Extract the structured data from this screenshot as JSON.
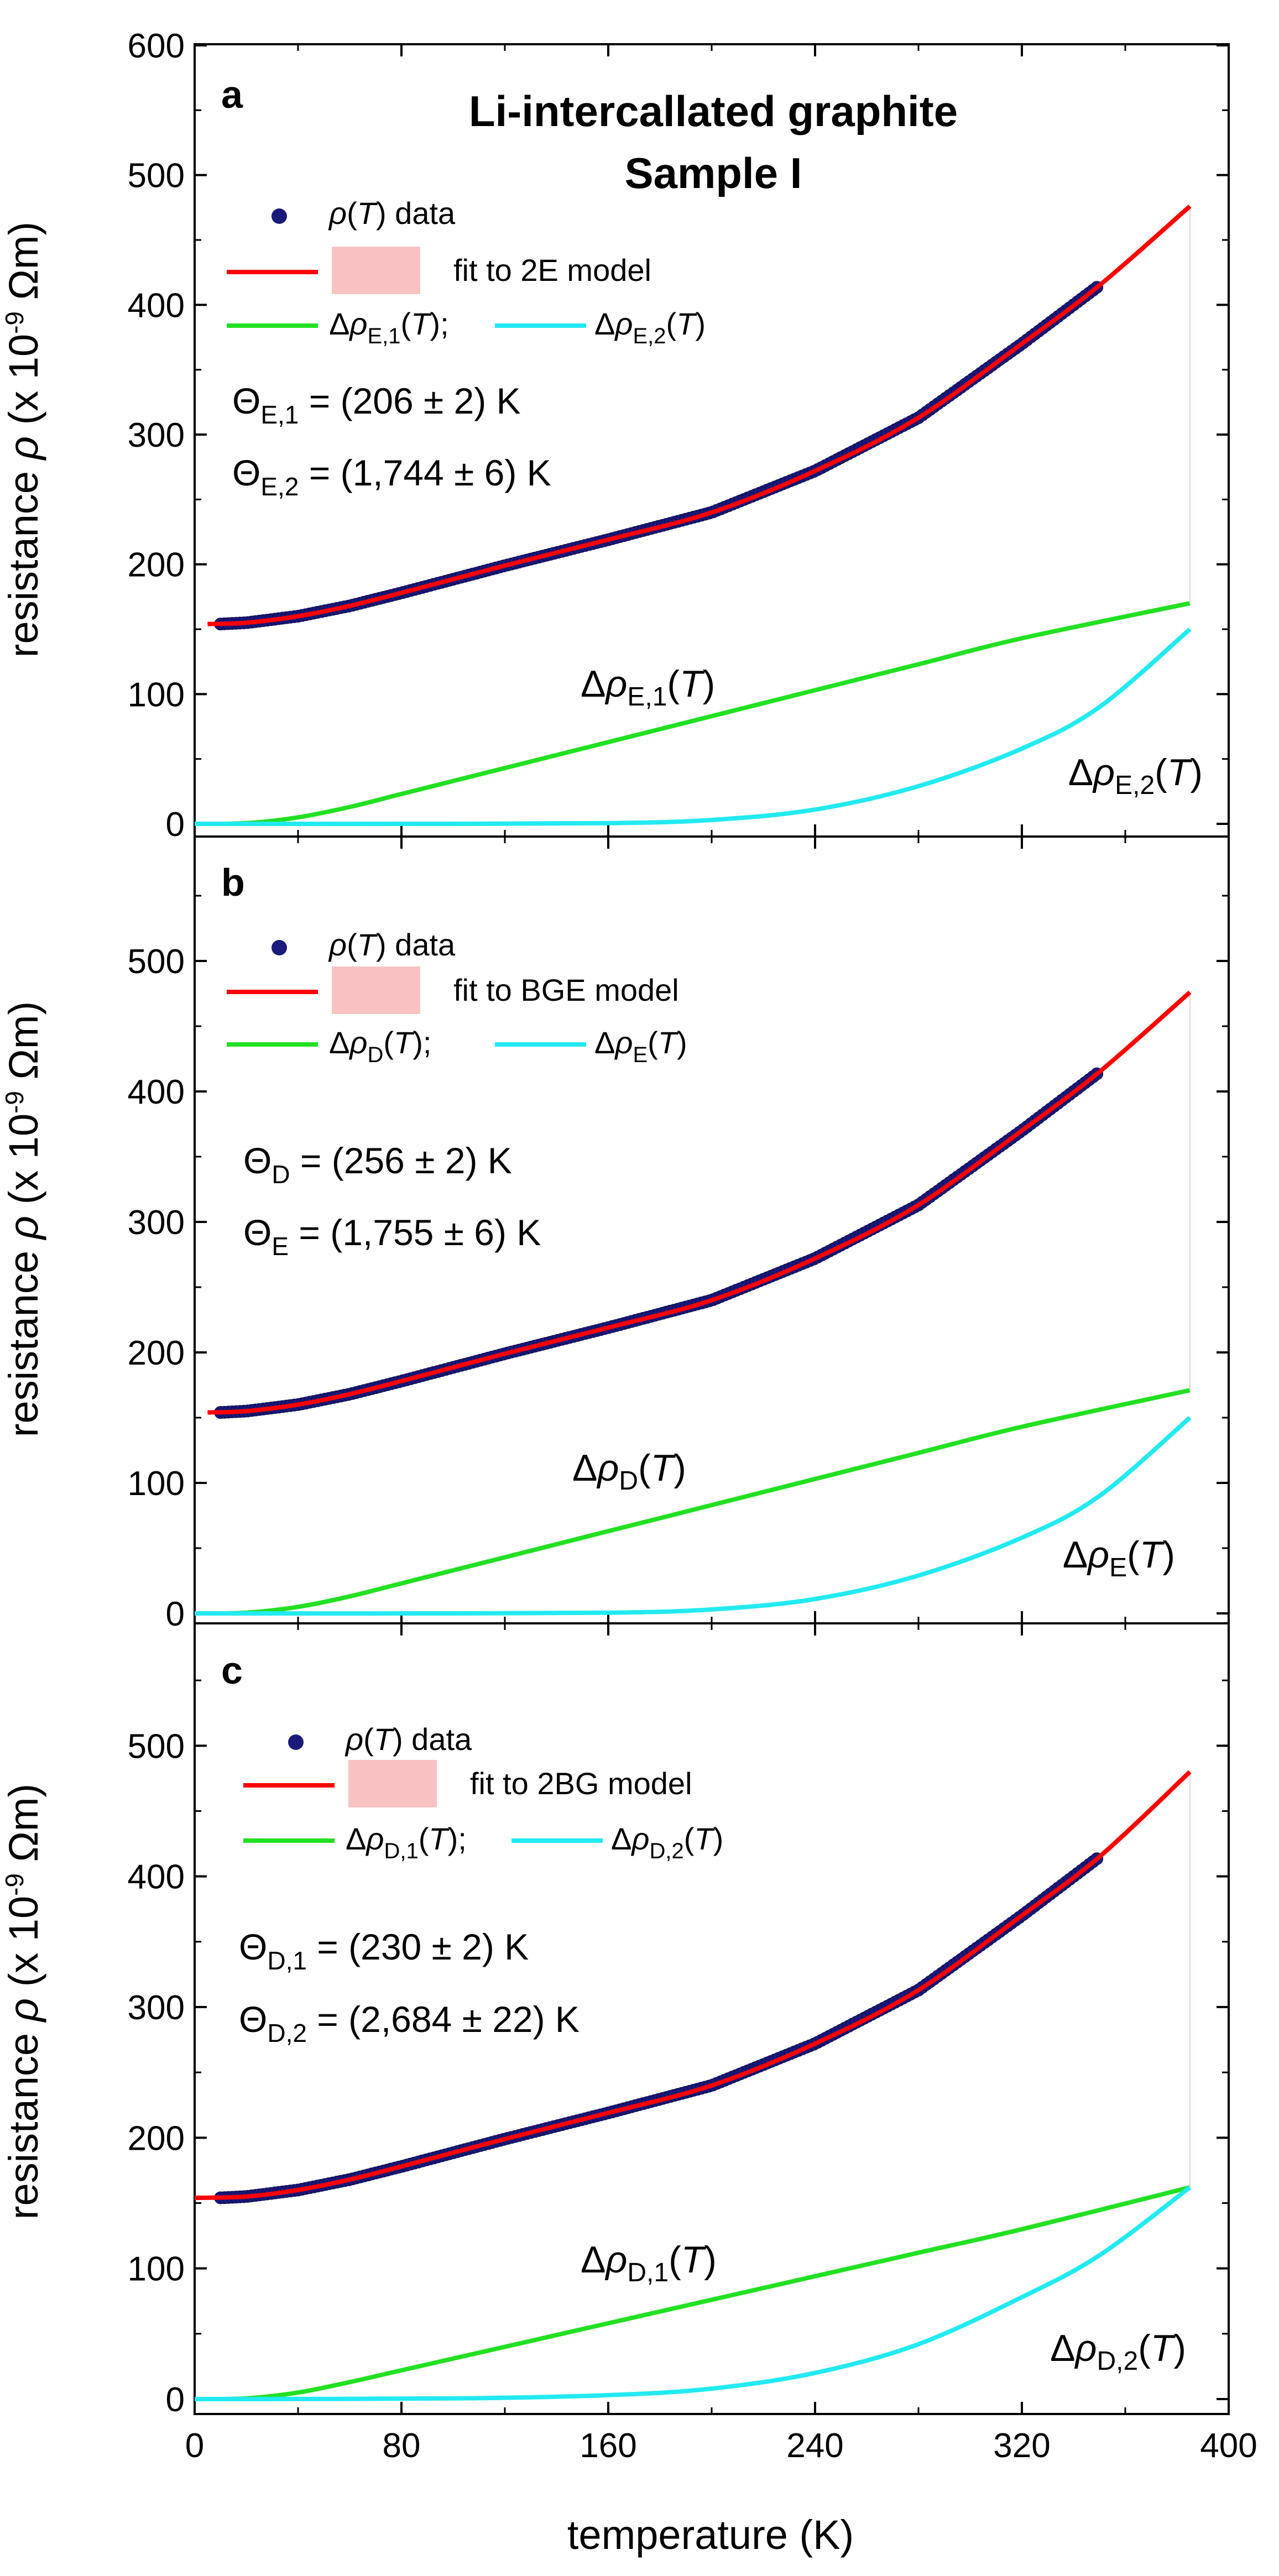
{
  "figure": {
    "title_line1": "Li-intercallated graphite",
    "title_line2": "Sample I",
    "xlabel": "temperature (K)",
    "ylabel_prefix": "resistance ",
    "ylabel_rho": "ρ",
    "ylabel_units": " (x 10",
    "ylabel_exp": "-9",
    "ylabel_end": " Ωm)",
    "colors": {
      "data": "#1a1a7a",
      "fit": "#ff0000",
      "fit_band": "#f8c2c2",
      "comp1": "#22e022",
      "comp2": "#22eaf0"
    }
  },
  "chart_data": [
    {
      "type": "scatter",
      "panel": "a",
      "xlim": [
        0,
        400
      ],
      "ylim": [
        0,
        600
      ],
      "yticks": [
        "0",
        "100",
        "200",
        "300",
        "400",
        "500",
        "600"
      ],
      "xticks": [],
      "legend": {
        "data": "data",
        "fit": "fit to 2E model",
        "comp1_sub": "E,1",
        "comp2_sub": "E,2"
      },
      "params": [
        {
          "sub": "E,1",
          "value": " = (206 ± 2) K"
        },
        {
          "sub": "E,2",
          "value": " = (1,744 ± 6) K"
        }
      ],
      "annotations": [
        {
          "sub": "E,1"
        },
        {
          "sub": "E,2"
        }
      ],
      "series": [
        {
          "name": "ρ(T) data",
          "x": [
            10,
            20,
            40,
            60,
            80,
            120,
            160,
            200,
            240,
            280,
            320,
            350
          ],
          "y": [
            154,
            155,
            160,
            168,
            178,
            199,
            219,
            240,
            272,
            313,
            370,
            415
          ]
        },
        {
          "name": "fit",
          "x": [
            5,
            20,
            40,
            60,
            80,
            120,
            160,
            200,
            240,
            280,
            320,
            350,
            385
          ],
          "y": [
            154,
            155,
            160,
            168,
            178,
            199,
            219,
            240,
            272,
            313,
            370,
            415,
            476
          ]
        },
        {
          "name": "Δρ_E,1(T)",
          "x": [
            0,
            20,
            40,
            60,
            80,
            120,
            160,
            200,
            240,
            280,
            320,
            385
          ],
          "y": [
            0,
            0.5,
            5,
            13,
            23,
            43,
            63,
            83,
            103,
            123,
            143,
            170
          ]
        },
        {
          "name": "Δρ_E,2(T)",
          "x": [
            0,
            100,
            160,
            200,
            240,
            280,
            320,
            350,
            385
          ],
          "y": [
            0,
            0,
            0.5,
            3,
            11,
            29,
            58,
            90,
            150
          ]
        }
      ]
    },
    {
      "type": "scatter",
      "panel": "b",
      "xlim": [
        0,
        400
      ],
      "ylim": [
        -5,
        600
      ],
      "yticks": [
        "0",
        "100",
        "200",
        "300",
        "400",
        "500"
      ],
      "xticks": [],
      "legend": {
        "data": "data",
        "fit": "fit to BGE model",
        "comp1_sub": "D",
        "comp2_sub": "E"
      },
      "params": [
        {
          "sub": "D",
          "value": " = (256 ± 2) K"
        },
        {
          "sub": "E",
          "value": " = (1,755 ± 6) K"
        }
      ],
      "annotations": [
        {
          "sub": "D"
        },
        {
          "sub": "E"
        }
      ],
      "series": [
        {
          "name": "ρ(T) data",
          "x": [
            10,
            20,
            40,
            60,
            80,
            120,
            160,
            200,
            240,
            280,
            320,
            350
          ],
          "y": [
            154,
            155,
            160,
            168,
            178,
            199,
            219,
            240,
            272,
            313,
            370,
            415
          ]
        },
        {
          "name": "fit",
          "x": [
            5,
            20,
            40,
            60,
            80,
            120,
            160,
            200,
            240,
            280,
            320,
            350,
            385
          ],
          "y": [
            154,
            155,
            160,
            168,
            178,
            199,
            219,
            240,
            272,
            313,
            370,
            415,
            476
          ]
        },
        {
          "name": "Δρ_D(T)",
          "x": [
            0,
            20,
            40,
            60,
            80,
            120,
            160,
            200,
            240,
            280,
            320,
            385
          ],
          "y": [
            0,
            0.5,
            5,
            13,
            23,
            43,
            63,
            83,
            103,
            123,
            143,
            171
          ]
        },
        {
          "name": "Δρ_E(T)",
          "x": [
            0,
            100,
            160,
            200,
            240,
            280,
            320,
            350,
            385
          ],
          "y": [
            0,
            0,
            0.5,
            3,
            11,
            29,
            58,
            90,
            150
          ]
        }
      ]
    },
    {
      "type": "scatter",
      "panel": "c",
      "xlim": [
        0,
        400
      ],
      "ylim": [
        -5,
        600
      ],
      "yticks": [
        "0",
        "100",
        "200",
        "300",
        "400",
        "500"
      ],
      "xticks": [
        "0",
        "80",
        "160",
        "240",
        "320",
        "400"
      ],
      "legend": {
        "data": "data",
        "fit": "fit to 2BG model",
        "comp1_sub": "D,1",
        "comp2_sub": "D,2"
      },
      "params": [
        {
          "sub": "D,1",
          "value": " = (230 ± 2) K"
        },
        {
          "sub": "D,2",
          "value": " = (2,684 ± 22) K"
        }
      ],
      "annotations": [
        {
          "sub": "D,1"
        },
        {
          "sub": "D,2"
        }
      ],
      "series": [
        {
          "name": "ρ(T) data",
          "x": [
            10,
            20,
            40,
            60,
            80,
            120,
            160,
            200,
            240,
            280,
            320,
            350
          ],
          "y": [
            154,
            155,
            160,
            168,
            178,
            199,
            219,
            240,
            272,
            313,
            370,
            415
          ]
        },
        {
          "name": "fit",
          "x": [
            0,
            20,
            40,
            60,
            80,
            120,
            160,
            200,
            240,
            280,
            320,
            350,
            385
          ],
          "y": [
            154,
            155,
            160,
            168,
            178,
            199,
            219,
            240,
            272,
            313,
            370,
            415,
            480
          ]
        },
        {
          "name": "Δρ_D,1(T)",
          "x": [
            0,
            20,
            40,
            60,
            80,
            120,
            160,
            200,
            240,
            280,
            320,
            385
          ],
          "y": [
            0,
            0.5,
            5,
            13,
            22,
            40,
            58,
            76,
            94,
            112,
            130,
            162
          ]
        },
        {
          "name": "Δρ_D,2(T)",
          "x": [
            0,
            100,
            160,
            200,
            240,
            280,
            320,
            350,
            385
          ],
          "y": [
            0,
            0.5,
            3,
            8,
            20,
            42,
            78,
            110,
            162
          ]
        }
      ]
    }
  ]
}
